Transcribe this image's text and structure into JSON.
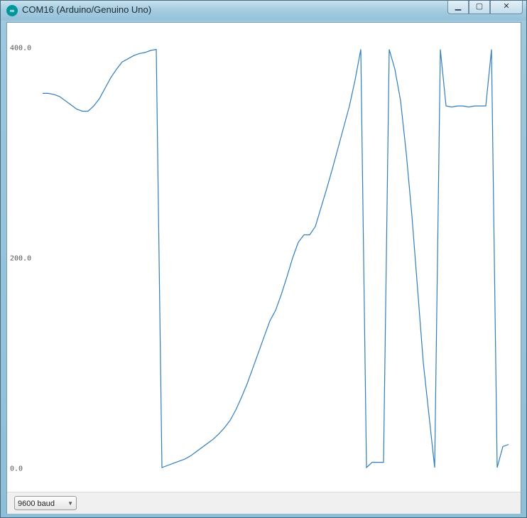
{
  "window": {
    "title": "COM16 (Arduino/Genuino Uno)",
    "icon": "arduino-icon",
    "controls": {
      "minimize": "▁",
      "maximize": "▢",
      "close": "✕"
    }
  },
  "plotter": {
    "y_axis_labels": [
      "400.0",
      "200.0",
      "0.0"
    ],
    "line_color": "#2f7dbf"
  },
  "chart_data": {
    "type": "line",
    "ylim": [
      0,
      400
    ],
    "y_ticks": [
      0,
      200,
      400
    ],
    "series": [
      {
        "values": [
          357,
          357,
          356,
          354,
          350,
          346,
          342,
          340,
          340,
          345,
          352,
          362,
          372,
          380,
          387,
          390,
          393,
          395,
          396,
          398,
          399,
          0,
          2,
          4,
          6,
          8,
          11,
          15,
          19,
          23,
          27,
          32,
          38,
          45,
          55,
          67,
          80,
          95,
          110,
          125,
          140,
          150,
          165,
          182,
          200,
          215,
          222,
          222,
          230,
          248,
          266,
          285,
          305,
          325,
          345,
          370,
          399,
          0,
          5,
          5,
          5,
          399,
          380,
          350,
          300,
          240,
          170,
          100,
          50,
          0,
          399,
          345,
          344,
          345,
          345,
          344,
          345,
          345,
          345,
          399,
          0,
          20,
          22
        ]
      }
    ]
  },
  "controls": {
    "baud_rate": "9600 baud"
  }
}
